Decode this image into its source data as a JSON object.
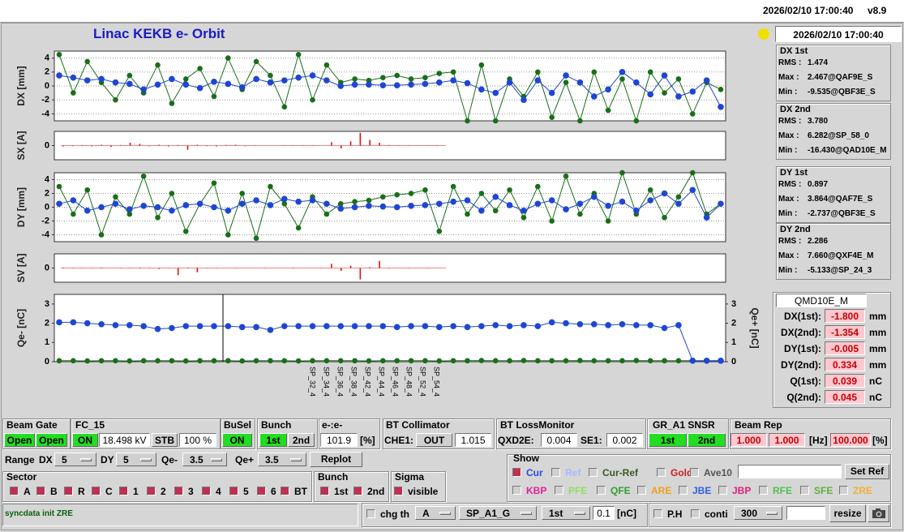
{
  "header": {
    "datetime": "2026/02/10 17:00:40",
    "version": "v8.9"
  },
  "title": "Linac KEKB e- Orbit",
  "clock": "2026/02/10 17:00:40",
  "plots": [
    {
      "type": "line",
      "ylabel": "DX [mm]",
      "ylim": [
        -5,
        5
      ],
      "yticks": [
        -4,
        -2,
        0,
        2,
        4
      ],
      "grid": true,
      "series": [
        {
          "color": "#1e46d2",
          "values": [
            1.5,
            1.2,
            0.8,
            1.0,
            0.5,
            0.3,
            -0.5,
            0.2,
            1.0,
            0.2,
            -0.3,
            0.6,
            0.3,
            -0.2,
            1.0,
            0.5,
            0.8,
            1.2,
            1.5,
            0.8,
            0,
            0.2,
            0.2,
            0.1,
            0.1,
            0.2,
            0.3,
            0.5,
            0.8,
            0.4,
            -0.5,
            -1.0,
            0.5,
            -2.0,
            0.8,
            -1.0,
            1.5,
            0.5,
            -1.5,
            -0.5,
            2.0,
            0.5,
            -1.2,
            1.5,
            -1.5,
            -0.8,
            0.8,
            -3.0
          ]
        },
        {
          "color": "#1a6e1a",
          "values": [
            4.5,
            -1.0,
            3.5,
            0.5,
            -2.0,
            1.5,
            -1.0,
            3.0,
            -2.5,
            1.0,
            2.5,
            -1.5,
            4.0,
            -0.5,
            3.5,
            1.5,
            -3.0,
            4.5,
            -2.0,
            3.0,
            0.5,
            1.0,
            0.8,
            1.2,
            1.5,
            1.0,
            1.2,
            1.8,
            2.0,
            -5.0,
            3.0,
            -5.0,
            1.0,
            -1.5,
            2.0,
            -4.5,
            0.5,
            -5.0,
            2.0,
            -3.5,
            1.0,
            -5.0,
            2.0,
            -1.0,
            1.0,
            -4.0,
            0.5,
            -0.5
          ]
        }
      ]
    },
    {
      "type": "bar",
      "ylabel": "SX [A]",
      "ylim": [
        -5,
        5
      ],
      "yticks": [
        0
      ],
      "grid": false,
      "series": [
        {
          "color": "#e01010",
          "values": [
            -0.3,
            -0.2,
            0.2,
            -0.3,
            0.3,
            -0.5,
            0.2,
            1.0,
            0.6,
            -0.2,
            0.3,
            -0.3,
            0.2,
            -1.5,
            0.3,
            -0.2,
            -0.3,
            0.2,
            0.3,
            -0.2,
            0.1,
            0,
            0,
            0.1,
            -0.1,
            0.1,
            0.1,
            0,
            1.2,
            -1.0,
            1.5,
            4.5,
            2.0,
            1.0,
            0.2,
            0.1,
            0.1,
            0.1,
            0.1,
            0.1
          ]
        }
      ]
    },
    {
      "type": "line",
      "ylabel": "DY [mm]",
      "ylim": [
        -5,
        5
      ],
      "yticks": [
        -4,
        -2,
        0,
        2,
        4
      ],
      "grid": true,
      "series": [
        {
          "color": "#1e46d2",
          "values": [
            0.5,
            1.0,
            -0.5,
            0,
            0.5,
            -0.3,
            0.2,
            0,
            -0.5,
            0.3,
            0.5,
            0,
            -0.5,
            0.5,
            1.0,
            0.3,
            1.2,
            0.8,
            1.0,
            0.5,
            -0.2,
            0,
            0.2,
            0.1,
            0,
            0.2,
            0.3,
            0.5,
            0.8,
            1.0,
            -0.5,
            1.5,
            0.3,
            -0.5,
            0.5,
            1.0,
            -0.3,
            0.5,
            1.5,
            0.2,
            0.8,
            -0.5,
            1.0,
            2.0,
            0.5,
            2.5,
            -1.5,
            0.5
          ]
        },
        {
          "color": "#1a6e1a",
          "values": [
            3.0,
            -1.0,
            2.5,
            -4.0,
            1.5,
            -1.0,
            4.5,
            -1.5,
            2.0,
            -3.5,
            0.5,
            3.5,
            -4.0,
            2.0,
            -4.5,
            3.0,
            0.5,
            -3.0,
            1.5,
            -1.0,
            0.5,
            0.8,
            1.0,
            1.5,
            1.8,
            2.0,
            2.5,
            -3.5,
            3.0,
            -1.0,
            2.0,
            -0.5,
            2.5,
            -1.5,
            3.0,
            -2.0,
            4.5,
            -1.0,
            2.0,
            -2.0,
            5.0,
            -1.0,
            2.5,
            -1.5,
            1.5,
            5.0,
            -1.0,
            0.5
          ]
        }
      ]
    },
    {
      "type": "bar",
      "ylabel": "SV [A]",
      "ylim": [
        -5,
        5
      ],
      "yticks": [
        0
      ],
      "grid": false,
      "series": [
        {
          "color": "#e01010",
          "values": [
            0.2,
            0.1,
            -0.1,
            0.1,
            0.2,
            0,
            -0.1,
            0.1,
            -0.2,
            0.1,
            -0.3,
            0.1,
            -2.5,
            0.2,
            -1.5,
            0.1,
            -0.1,
            0,
            0.1,
            0,
            0,
            0.1,
            0,
            0,
            0.1,
            0,
            0,
            0.1,
            1.5,
            -1.0,
            0.8,
            -4.0,
            0.3,
            2.5,
            0.1,
            0,
            0.1,
            0,
            0.1,
            0
          ]
        }
      ]
    },
    {
      "type": "line",
      "ylabel": "Qe- [nC]",
      "y2label": "Qe+ [nC]",
      "ylim": [
        0,
        3.5
      ],
      "yticks": [
        0,
        1,
        2,
        3
      ],
      "y2lim": [
        0,
        3.5
      ],
      "y2ticks": [
        0,
        1,
        2,
        3
      ],
      "grid": false,
      "series": [
        {
          "color": "#1e46d2",
          "values": [
            2.05,
            2.05,
            2.0,
            1.95,
            1.9,
            1.9,
            1.85,
            1.7,
            1.75,
            1.85,
            1.85,
            1.85,
            1.85,
            1.8,
            1.8,
            1.65,
            1.85,
            1.85,
            1.85,
            1.85,
            1.85,
            1.85,
            1.85,
            1.85,
            1.8,
            1.85,
            1.85,
            1.8,
            1.85,
            1.8,
            1.85,
            1.9,
            1.85,
            1.9,
            1.85,
            2.05,
            2.0,
            1.95,
            1.95,
            1.9,
            1.95,
            1.9,
            1.9,
            1.75,
            1.9,
            0.05,
            0.05,
            0.05
          ]
        },
        {
          "color": "#1a6e1a",
          "values": [
            0.05,
            0.05,
            0.04,
            0.05,
            0.05,
            0.04,
            0.05,
            0.05,
            0.05,
            0.04,
            0.05,
            0.05,
            0.05,
            0.04,
            0.05,
            0.05,
            0.05,
            0.04,
            0.05,
            0.05,
            0.05,
            0.05,
            0.04,
            0.05,
            0.05,
            0.05,
            0.05,
            0.04,
            0.05,
            0.05,
            0.06,
            0.05,
            0.05,
            0.06,
            0.05,
            0.05,
            0.05,
            0.06,
            0.05,
            0.05,
            0.05,
            0.06,
            0.05,
            0.05,
            0.05,
            0.05,
            0.04,
            0.05
          ]
        }
      ]
    }
  ],
  "x_labels": [
    "SP_32_4",
    "SP_34_4",
    "SP_36_4",
    "SP_38_4",
    "SP_42_4",
    "SP_44_4",
    "SP_46_4",
    "SP_48_4",
    "SP_52_4",
    "SP_54_4"
  ],
  "stats": [
    {
      "title": "DX 1st",
      "lines": [
        [
          "RMS :",
          "1.474"
        ],
        [
          "Max :",
          "2.467@QAF9E_S"
        ],
        [
          "Min :",
          "-9.535@QBF3E_S"
        ]
      ]
    },
    {
      "title": "DX 2nd",
      "lines": [
        [
          "RMS :",
          "3.780"
        ],
        [
          "Max :",
          "6.282@SP_58_0"
        ],
        [
          "Min :",
          "-16.430@QAD10E_M"
        ]
      ]
    },
    {
      "title": "DY 1st",
      "lines": [
        [
          "RMS :",
          "0.897"
        ],
        [
          "Max :",
          "3.864@QAF7E_S"
        ],
        [
          "Min :",
          "-2.737@QBF3E_S"
        ]
      ]
    },
    {
      "title": "DY 2nd",
      "lines": [
        [
          "RMS :",
          "2.286"
        ],
        [
          "Max :",
          "7.660@QXF4E_M"
        ],
        [
          "Min :",
          "-5.133@SP_24_3"
        ]
      ]
    }
  ],
  "monitor": {
    "name": "QMD10E_M",
    "rows": [
      {
        "label": "DX(1st):",
        "value": "-1.800",
        "unit": "mm"
      },
      {
        "label": "DX(2nd):",
        "value": "-1.354",
        "unit": "mm"
      },
      {
        "label": "DY(1st):",
        "value": "-0.005",
        "unit": "mm"
      },
      {
        "label": "DY(2nd):",
        "value": "0.334",
        "unit": "mm"
      },
      {
        "label": "Q(1st):",
        "value": "0.039",
        "unit": "nC"
      },
      {
        "label": "Q(2nd):",
        "value": "0.045",
        "unit": "nC"
      }
    ]
  },
  "controls": {
    "beam_gate": {
      "title": "Beam Gate",
      "buttons": [
        "Open",
        "Open"
      ]
    },
    "fc": {
      "title": "FC_15",
      "state": "ON",
      "value": "18.498 kV",
      "mode": "STB",
      "percent": "100 %"
    },
    "busel": {
      "title": "BuSel",
      "state": "ON"
    },
    "bunch_sel": {
      "title": "Bunch",
      "buttons": [
        "1st",
        "2nd"
      ]
    },
    "ee": {
      "title": "e-:e-",
      "value": "101.9",
      "unit": "[%]"
    },
    "collimator": {
      "title": "BT Collimator",
      "name": "CHE1:",
      "state": "OUT",
      "value": "1.015"
    },
    "loss": {
      "title": "BT LossMonitor",
      "items": [
        {
          "name": "QXD2E:",
          "value": "0.004"
        },
        {
          "name": "SE1:",
          "value": "0.002"
        }
      ]
    },
    "snsr": {
      "title": "GR_A1  SNSR",
      "buttons": [
        "1st",
        "2nd"
      ]
    },
    "beam_rep": {
      "title": "Beam Rep",
      "values": [
        "1.000",
        "1.000"
      ],
      "unit": "[Hz]",
      "percent": "100.000",
      "percent_unit": "[%]"
    },
    "range": {
      "label": "Range",
      "items": [
        {
          "name": "DX",
          "value": "5"
        },
        {
          "name": "DY",
          "value": "5"
        },
        {
          "name": "Qe-",
          "value": "3.5"
        },
        {
          "name": "Qe+",
          "value": "3.5"
        }
      ],
      "button": "Replot"
    },
    "sector": {
      "title": "Sector",
      "items": [
        {
          "label": "A",
          "checked": true
        },
        {
          "label": "B",
          "checked": true
        },
        {
          "label": "R",
          "checked": true
        },
        {
          "label": "C",
          "checked": true
        },
        {
          "label": "1",
          "checked": true
        },
        {
          "label": "2",
          "checked": true
        },
        {
          "label": "3",
          "checked": true
        },
        {
          "label": "4",
          "checked": true
        },
        {
          "label": "5",
          "checked": true
        },
        {
          "label": "6",
          "checked": true
        },
        {
          "label": "BT",
          "checked": true
        }
      ]
    },
    "bunch": {
      "title": "Bunch",
      "items": [
        {
          "label": "1st",
          "checked": true
        },
        {
          "label": "2nd",
          "checked": true
        }
      ]
    },
    "sigma": {
      "title": "Sigma",
      "items": [
        {
          "label": "visible",
          "checked": true
        }
      ]
    },
    "show": {
      "title": "Show",
      "items": [
        {
          "label": "Cur",
          "checked": true,
          "color": "#2a4ee0"
        },
        {
          "label": "Ref",
          "checked": false,
          "color": "#a8b8ff"
        },
        {
          "label": "Cur-Ref",
          "checked": false,
          "color": "#3a5a20"
        },
        {
          "label": "Gold",
          "checked": false,
          "color": "#d02020"
        },
        {
          "label": "Ave10",
          "checked": false,
          "color": "#555555"
        },
        {
          "label": "KBP",
          "checked": false,
          "color": "#e0209a"
        },
        {
          "label": "PFE",
          "checked": false,
          "color": "#90e060"
        },
        {
          "label": "QFE",
          "checked": false,
          "color": "#30a030"
        },
        {
          "label": "ARE",
          "checked": false,
          "color": "#f0a020"
        },
        {
          "label": "JBE",
          "checked": false,
          "color": "#3060e0"
        },
        {
          "label": "JBP",
          "checked": false,
          "color": "#e02080"
        },
        {
          "label": "RFE",
          "checked": false,
          "color": "#50c050"
        },
        {
          "label": "SFE",
          "checked": false,
          "color": "#60b040"
        },
        {
          "label": "ZRE",
          "checked": false,
          "color": "#f0b030"
        }
      ],
      "button": "Set Ref"
    },
    "status": "syncdata init ZRE",
    "bottom": {
      "chg": {
        "label": "chg th",
        "checked": false
      },
      "menus": [
        "A",
        "SP_A1_G",
        "1st"
      ],
      "threshold": "0.1",
      "unit": "[nC]",
      "ph": {
        "label": "P.H",
        "checked": false
      },
      "conti": {
        "label": "conti",
        "checked": false
      },
      "count": "300",
      "button": "resize"
    }
  }
}
